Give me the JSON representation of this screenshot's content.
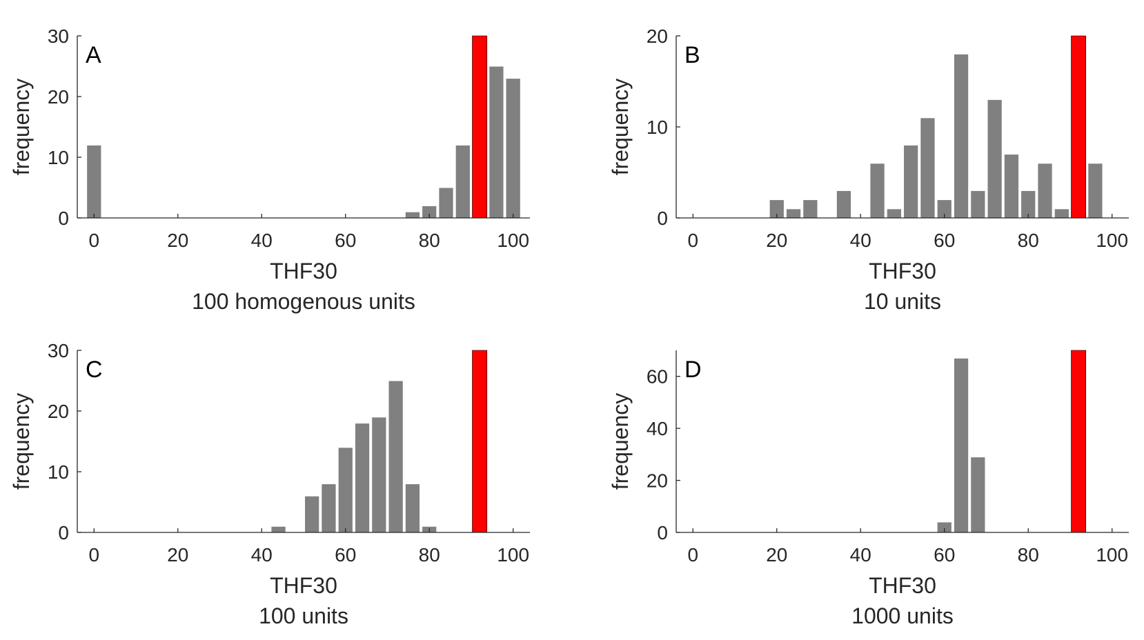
{
  "chart_data": [
    {
      "type": "bar",
      "panel": "A",
      "title": "",
      "xlabel": "THF30",
      "ylabel": "frequency",
      "subtitle": "100 homogenous units",
      "xlim": [
        -4,
        104
      ],
      "ylim": [
        0,
        30
      ],
      "xticks": [
        0,
        20,
        40,
        60,
        80,
        100
      ],
      "yticks": [
        0,
        10,
        20,
        30
      ],
      "bar_width": 3.5,
      "bar_color": "#808080",
      "x": [
        0,
        76,
        80,
        84,
        88,
        92,
        96,
        100
      ],
      "values": [
        12,
        1,
        2,
        5,
        12,
        20,
        25,
        23
      ],
      "highlight": {
        "x": 92,
        "value": 30,
        "color": "#ff0000"
      }
    },
    {
      "type": "bar",
      "panel": "B",
      "title": "",
      "xlabel": "THF30",
      "ylabel": "frequency",
      "subtitle": "10 units",
      "xlim": [
        -4,
        104
      ],
      "ylim": [
        0,
        20
      ],
      "xticks": [
        0,
        20,
        40,
        60,
        80,
        100
      ],
      "yticks": [
        0,
        10,
        20
      ],
      "bar_width": 3.5,
      "bar_color": "#808080",
      "x": [
        20,
        24,
        28,
        36,
        44,
        48,
        52,
        56,
        60,
        64,
        68,
        72,
        76,
        80,
        84,
        88,
        92,
        96
      ],
      "values": [
        2,
        1,
        2,
        3,
        6,
        1,
        8,
        11,
        2,
        18,
        3,
        13,
        7,
        3,
        6,
        1,
        7,
        6
      ],
      "highlight": {
        "x": 92,
        "value": 20,
        "color": "#ff0000"
      }
    },
    {
      "type": "bar",
      "panel": "C",
      "title": "",
      "xlabel": "THF30",
      "ylabel": "frequency",
      "subtitle": "100 units",
      "xlim": [
        -4,
        104
      ],
      "ylim": [
        0,
        30
      ],
      "xticks": [
        0,
        20,
        40,
        60,
        80,
        100
      ],
      "yticks": [
        0,
        10,
        20,
        30
      ],
      "bar_width": 3.5,
      "bar_color": "#808080",
      "x": [
        44,
        52,
        56,
        60,
        64,
        68,
        72,
        76,
        80
      ],
      "values": [
        1,
        6,
        8,
        14,
        18,
        19,
        25,
        8,
        1
      ],
      "highlight": {
        "x": 92,
        "value": 30,
        "color": "#ff0000"
      }
    },
    {
      "type": "bar",
      "panel": "D",
      "title": "",
      "xlabel": "THF30",
      "ylabel": "frequency",
      "subtitle": "1000 units",
      "xlim": [
        -4,
        104
      ],
      "ylim": [
        0,
        70
      ],
      "xticks": [
        0,
        20,
        40,
        60,
        80,
        100
      ],
      "yticks": [
        0,
        20,
        40,
        60
      ],
      "bar_width": 3.5,
      "bar_color": "#808080",
      "x": [
        60,
        64,
        68
      ],
      "values": [
        4,
        67,
        29
      ],
      "highlight": {
        "x": 92,
        "value": 70,
        "color": "#ff0000"
      }
    }
  ]
}
